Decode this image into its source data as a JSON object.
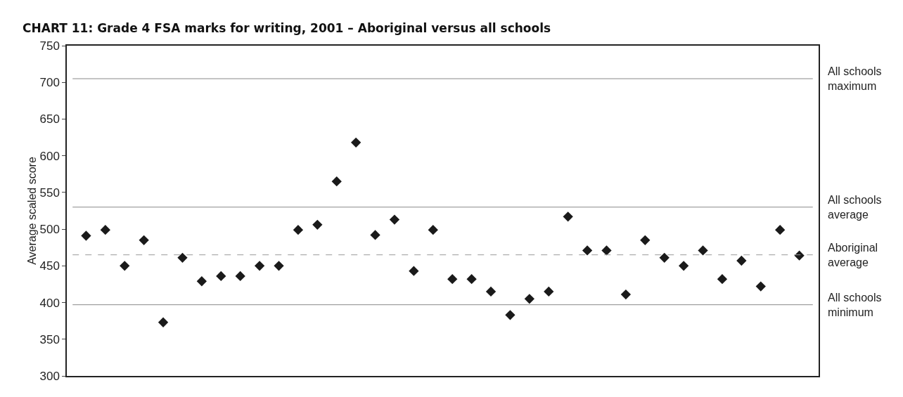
{
  "chart_data": {
    "type": "scatter",
    "title": "CHART 11: Grade 4 FSA marks for writing, 2001 – Aboriginal versus all schools",
    "ylabel": "Average scaled score",
    "categories": [
      null,
      null,
      null,
      null,
      null,
      null,
      null,
      null,
      null,
      null,
      null,
      null,
      null,
      null,
      null,
      null,
      null,
      null,
      null,
      null,
      null,
      null,
      null,
      null,
      null,
      null,
      null,
      null,
      null,
      null,
      null,
      null,
      null,
      null,
      null,
      null,
      null,
      null
    ],
    "values": [
      491,
      499,
      450,
      485,
      373,
      461,
      429,
      436,
      436,
      450,
      450,
      499,
      506,
      565,
      618,
      492,
      513,
      443,
      499,
      432,
      432,
      415,
      383,
      405,
      415,
      517,
      471,
      471,
      411,
      485,
      461,
      450,
      471,
      432,
      457,
      422,
      499,
      464
    ],
    "color": "#1a1a1a",
    "marker": "diamond",
    "ylim": [
      300,
      750
    ],
    "yticks": [
      300,
      350,
      400,
      450,
      500,
      550,
      600,
      650,
      700,
      750
    ],
    "grid": false,
    "ref_lines": [
      {
        "axis": "y",
        "value": 705,
        "label": "All schools\nmaximum",
        "color": "#888888",
        "line_style": "solid"
      },
      {
        "axis": "y",
        "value": 530,
        "label": "All schools\naverage",
        "color": "#888888",
        "line_style": "solid"
      },
      {
        "axis": "y",
        "value": 465,
        "label": "Aboriginal\naverage",
        "color": "#999999",
        "line_style": "dashed"
      },
      {
        "axis": "y",
        "value": 397,
        "label": "All schools\nminimum",
        "color": "#888888",
        "line_style": "solid"
      }
    ]
  }
}
